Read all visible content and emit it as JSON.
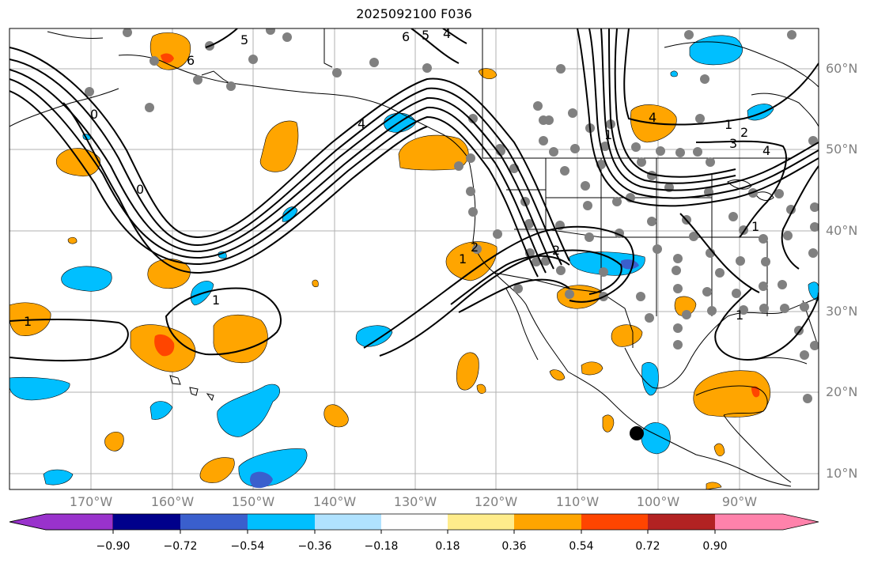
{
  "title": "2025092100 F036",
  "lat_labels": [
    "60°N",
    "50°N",
    "40°N",
    "30°N",
    "20°N",
    "10°N"
  ],
  "lon_labels": [
    "170°W",
    "160°W",
    "150°W",
    "140°W",
    "130°W",
    "120°W",
    "110°W",
    "100°W",
    "90°W"
  ],
  "colorbar": {
    "ticks": [
      "−0.90",
      "−0.72",
      "−0.54",
      "−0.36",
      "−0.18",
      "0.18",
      "0.36",
      "0.54",
      "0.72",
      "0.90"
    ],
    "colors": [
      "#9932cc",
      "#00008b",
      "#3a5fcd",
      "#00bfff",
      "#b0e2ff",
      "#ffffff",
      "#ffec8b",
      "#ffa500",
      "#ff4500",
      "#b22222",
      "#ff82ab"
    ]
  },
  "contour_labels": [
    "5",
    "6",
    "6",
    "5",
    "4",
    "0",
    "4",
    "4",
    "0",
    "1",
    "1",
    "2",
    "3",
    "4",
    "1",
    "2",
    "1",
    "1",
    "1",
    "1",
    "2"
  ],
  "colors": {
    "orange": "#ffa500",
    "red": "#ff4500",
    "blue": "#00bfff",
    "darkblue": "#3a5fcd",
    "station": "#808080",
    "grid": "#b0b0b0"
  }
}
